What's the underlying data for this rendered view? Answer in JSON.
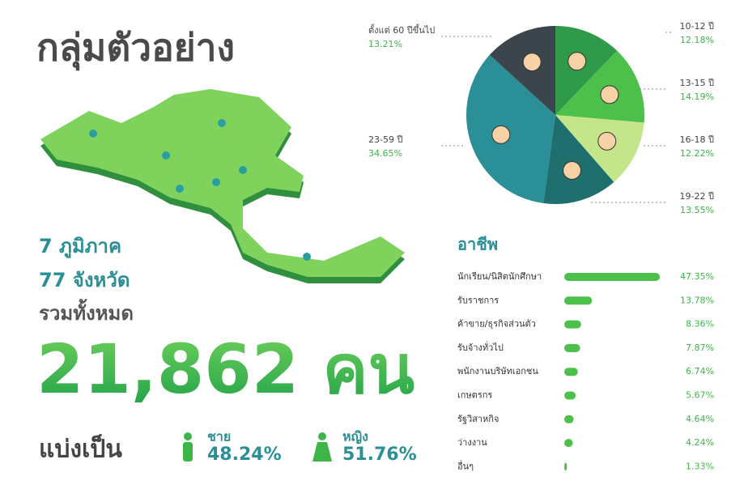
{
  "header": {
    "title": "กลุ่มตัวอย่าง"
  },
  "summary": {
    "regions": "7 ภูมิภาค",
    "provinces": "77 จังหวัด",
    "total_label": "รวมทั้งหมด",
    "total": "21,862 คน",
    "split_label": "แบ่งเป็น",
    "male": {
      "label": "ชาย",
      "share": "48.24%"
    },
    "female": {
      "label": "หญิง",
      "share": "51.76%"
    }
  },
  "chart_data": [
    {
      "type": "pie",
      "categories": [
        "10-12 ปี",
        "13-15 ปี",
        "16-18 ปี",
        "19-22 ปี",
        "23-59 ปี",
        "ตั้งแต่ 60 ปีขึ้นไป"
      ],
      "values": [
        12.18,
        14.19,
        12.22,
        13.55,
        34.65,
        13.21
      ],
      "value_labels": [
        "12.18%",
        "14.19%",
        "12.22%",
        "13.55%",
        "34.65%",
        "13.21%"
      ],
      "colors": [
        "#2e9a4a",
        "#4cc04a",
        "#c4e58a",
        "#1f6f6e",
        "#2a8f96",
        "#3d454c"
      ]
    },
    {
      "type": "bar",
      "orientation": "horizontal",
      "title": "อาชีพ",
      "categories": [
        "นักเรียน/นิสิตนักศึกษา",
        "รับราชการ",
        "ค้าขาย/ธุรกิจส่วนตัว",
        "รับจ้างทั่วไป",
        "พนักงานบริษัทเอกชน",
        "เกษตรกร",
        "รัฐวิสาหกิจ",
        "ว่างงาน",
        "อื่นๆ"
      ],
      "values": [
        47.35,
        13.78,
        8.36,
        7.87,
        6.74,
        5.67,
        4.64,
        4.24,
        1.33
      ],
      "value_labels": [
        "47.35%",
        "13.78%",
        "8.36%",
        "7.87%",
        "6.74%",
        "5.67%",
        "4.64%",
        "4.24%",
        "1.33%"
      ],
      "color": "#4cc04a"
    }
  ]
}
